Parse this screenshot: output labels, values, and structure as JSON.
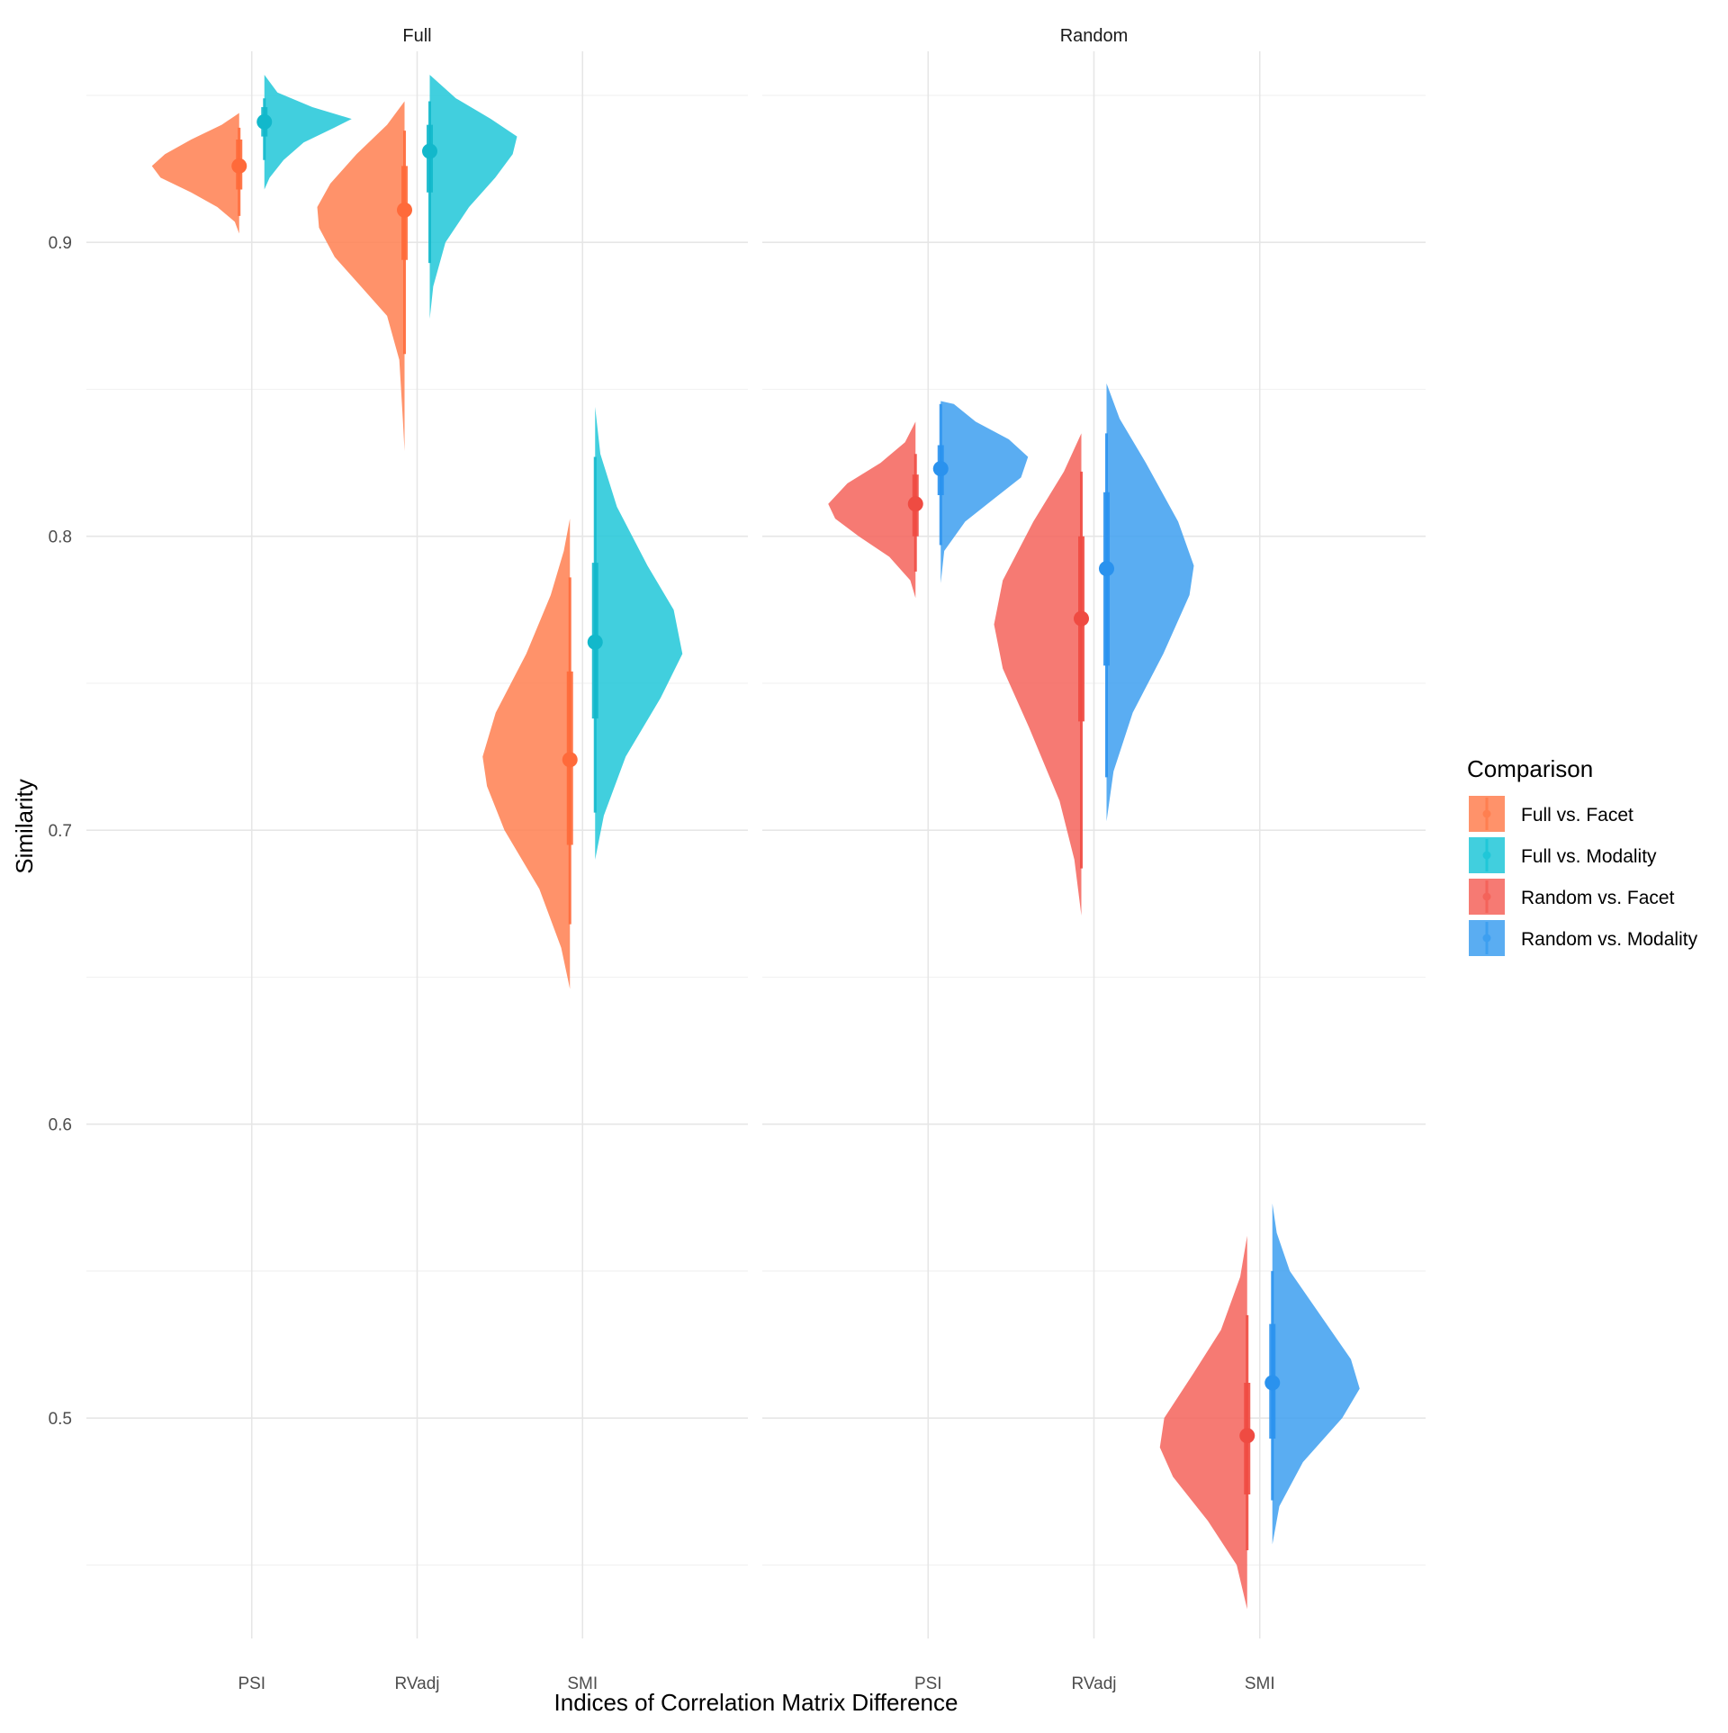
{
  "chart_data": {
    "type": "violin",
    "xlabel": "Indices of Correlation Matrix Difference",
    "ylabel": "Similarity",
    "ylim": [
      0.425,
      0.965
    ],
    "yticks": [
      0.5,
      0.6,
      0.7,
      0.8,
      0.9
    ],
    "ytick_labels": [
      "0.5",
      "0.6",
      "0.7",
      "0.8",
      "0.9"
    ],
    "categories": [
      "PSI",
      "RVadj",
      "SMI"
    ],
    "grid": true,
    "legend": {
      "title": "Comparison",
      "placement": "right",
      "entries": [
        {
          "label": "Full vs. Facet",
          "color": "#FF7F50"
        },
        {
          "label": "Full vs. Modality",
          "color": "#20C7D8"
        },
        {
          "label": "Random vs. Facet",
          "color": "#F4635A"
        },
        {
          "label": "Random vs. Modality",
          "color": "#3D9FF0"
        }
      ]
    },
    "panels": [
      {
        "title": "Full",
        "series": [
          {
            "name": "Full vs. Facet",
            "side": "left",
            "color": "#FF7F50",
            "point_color": "#FF6A3A",
            "groups": [
              {
                "category": "PSI",
                "median": 0.926,
                "inner_interval": [
                  0.918,
                  0.935
                ],
                "outer_interval": [
                  0.909,
                  0.939
                ],
                "density": [
                  [
                    0.903,
                    0
                  ],
                  [
                    0.907,
                    0.05
                  ],
                  [
                    0.912,
                    0.25
                  ],
                  [
                    0.917,
                    0.55
                  ],
                  [
                    0.922,
                    0.9
                  ],
                  [
                    0.926,
                    1.0
                  ],
                  [
                    0.93,
                    0.85
                  ],
                  [
                    0.935,
                    0.55
                  ],
                  [
                    0.94,
                    0.2
                  ],
                  [
                    0.944,
                    0
                  ]
                ]
              },
              {
                "category": "RVadj",
                "median": 0.911,
                "inner_interval": [
                  0.894,
                  0.926
                ],
                "outer_interval": [
                  0.862,
                  0.938
                ],
                "density": [
                  [
                    0.829,
                    0
                  ],
                  [
                    0.84,
                    0.02
                  ],
                  [
                    0.86,
                    0.06
                  ],
                  [
                    0.875,
                    0.2
                  ],
                  [
                    0.885,
                    0.5
                  ],
                  [
                    0.895,
                    0.8
                  ],
                  [
                    0.905,
                    0.98
                  ],
                  [
                    0.912,
                    1.0
                  ],
                  [
                    0.92,
                    0.85
                  ],
                  [
                    0.93,
                    0.55
                  ],
                  [
                    0.94,
                    0.2
                  ],
                  [
                    0.948,
                    0
                  ]
                ]
              },
              {
                "category": "SMI",
                "median": 0.724,
                "inner_interval": [
                  0.695,
                  0.754
                ],
                "outer_interval": [
                  0.668,
                  0.786
                ],
                "density": [
                  [
                    0.646,
                    0
                  ],
                  [
                    0.66,
                    0.1
                  ],
                  [
                    0.68,
                    0.35
                  ],
                  [
                    0.7,
                    0.75
                  ],
                  [
                    0.715,
                    0.95
                  ],
                  [
                    0.725,
                    1.0
                  ],
                  [
                    0.74,
                    0.85
                  ],
                  [
                    0.76,
                    0.5
                  ],
                  [
                    0.78,
                    0.22
                  ],
                  [
                    0.795,
                    0.07
                  ],
                  [
                    0.806,
                    0
                  ]
                ]
              }
            ]
          },
          {
            "name": "Full vs. Modality",
            "side": "right",
            "color": "#20C7D8",
            "point_color": "#12B8CB",
            "groups": [
              {
                "category": "PSI",
                "median": 0.941,
                "inner_interval": [
                  0.936,
                  0.946
                ],
                "outer_interval": [
                  0.928,
                  0.949
                ],
                "density": [
                  [
                    0.918,
                    0
                  ],
                  [
                    0.922,
                    0.06
                  ],
                  [
                    0.928,
                    0.22
                  ],
                  [
                    0.934,
                    0.45
                  ],
                  [
                    0.939,
                    0.8
                  ],
                  [
                    0.942,
                    1.0
                  ],
                  [
                    0.946,
                    0.55
                  ],
                  [
                    0.951,
                    0.15
                  ],
                  [
                    0.957,
                    0
                  ]
                ]
              },
              {
                "category": "RVadj",
                "median": 0.931,
                "inner_interval": [
                  0.917,
                  0.94
                ],
                "outer_interval": [
                  0.893,
                  0.948
                ],
                "density": [
                  [
                    0.874,
                    0
                  ],
                  [
                    0.885,
                    0.04
                  ],
                  [
                    0.9,
                    0.18
                  ],
                  [
                    0.912,
                    0.45
                  ],
                  [
                    0.922,
                    0.75
                  ],
                  [
                    0.93,
                    0.95
                  ],
                  [
                    0.936,
                    1.0
                  ],
                  [
                    0.942,
                    0.7
                  ],
                  [
                    0.949,
                    0.3
                  ],
                  [
                    0.957,
                    0
                  ]
                ]
              },
              {
                "category": "SMI",
                "median": 0.764,
                "inner_interval": [
                  0.738,
                  0.791
                ],
                "outer_interval": [
                  0.706,
                  0.827
                ],
                "density": [
                  [
                    0.69,
                    0
                  ],
                  [
                    0.705,
                    0.1
                  ],
                  [
                    0.725,
                    0.35
                  ],
                  [
                    0.745,
                    0.75
                  ],
                  [
                    0.76,
                    1.0
                  ],
                  [
                    0.775,
                    0.9
                  ],
                  [
                    0.79,
                    0.6
                  ],
                  [
                    0.81,
                    0.25
                  ],
                  [
                    0.828,
                    0.06
                  ],
                  [
                    0.844,
                    0
                  ]
                ]
              }
            ]
          }
        ]
      },
      {
        "title": "Random",
        "series": [
          {
            "name": "Random vs. Facet",
            "side": "left",
            "color": "#F4635A",
            "point_color": "#EF4B42",
            "groups": [
              {
                "category": "PSI",
                "median": 0.811,
                "inner_interval": [
                  0.8,
                  0.821
                ],
                "outer_interval": [
                  0.788,
                  0.828
                ],
                "density": [
                  [
                    0.779,
                    0
                  ],
                  [
                    0.785,
                    0.06
                  ],
                  [
                    0.793,
                    0.3
                  ],
                  [
                    0.8,
                    0.65
                  ],
                  [
                    0.806,
                    0.92
                  ],
                  [
                    0.811,
                    1.0
                  ],
                  [
                    0.818,
                    0.78
                  ],
                  [
                    0.825,
                    0.4
                  ],
                  [
                    0.832,
                    0.12
                  ],
                  [
                    0.839,
                    0
                  ]
                ]
              },
              {
                "category": "RVadj",
                "median": 0.772,
                "inner_interval": [
                  0.737,
                  0.8
                ],
                "outer_interval": [
                  0.687,
                  0.822
                ],
                "density": [
                  [
                    0.671,
                    0
                  ],
                  [
                    0.69,
                    0.08
                  ],
                  [
                    0.71,
                    0.25
                  ],
                  [
                    0.735,
                    0.6
                  ],
                  [
                    0.755,
                    0.9
                  ],
                  [
                    0.77,
                    1.0
                  ],
                  [
                    0.785,
                    0.9
                  ],
                  [
                    0.805,
                    0.55
                  ],
                  [
                    0.822,
                    0.2
                  ],
                  [
                    0.835,
                    0
                  ]
                ]
              },
              {
                "category": "SMI",
                "median": 0.494,
                "inner_interval": [
                  0.474,
                  0.512
                ],
                "outer_interval": [
                  0.455,
                  0.535
                ],
                "density": [
                  [
                    0.435,
                    0
                  ],
                  [
                    0.45,
                    0.12
                  ],
                  [
                    0.465,
                    0.45
                  ],
                  [
                    0.48,
                    0.85
                  ],
                  [
                    0.49,
                    1.0
                  ],
                  [
                    0.5,
                    0.95
                  ],
                  [
                    0.515,
                    0.62
                  ],
                  [
                    0.53,
                    0.3
                  ],
                  [
                    0.548,
                    0.08
                  ],
                  [
                    0.562,
                    0
                  ]
                ]
              }
            ]
          },
          {
            "name": "Random vs. Modality",
            "side": "right",
            "color": "#3D9FF0",
            "point_color": "#2A92EE",
            "groups": [
              {
                "category": "PSI",
                "median": 0.823,
                "inner_interval": [
                  0.814,
                  0.831
                ],
                "outer_interval": [
                  0.797,
                  0.845
                ],
                "density": [
                  [
                    0.784,
                    0
                  ],
                  [
                    0.795,
                    0.04
                  ],
                  [
                    0.805,
                    0.28
                  ],
                  [
                    0.813,
                    0.62
                  ],
                  [
                    0.82,
                    0.92
                  ],
                  [
                    0.827,
                    1.0
                  ],
                  [
                    0.833,
                    0.78
                  ],
                  [
                    0.839,
                    0.4
                  ],
                  [
                    0.845,
                    0.15
                  ],
                  [
                    0.846,
                    0
                  ]
                ]
              },
              {
                "category": "RVadj",
                "median": 0.789,
                "inner_interval": [
                  0.756,
                  0.815
                ],
                "outer_interval": [
                  0.718,
                  0.835
                ],
                "density": [
                  [
                    0.703,
                    0
                  ],
                  [
                    0.72,
                    0.08
                  ],
                  [
                    0.74,
                    0.3
                  ],
                  [
                    0.76,
                    0.65
                  ],
                  [
                    0.78,
                    0.95
                  ],
                  [
                    0.79,
                    1.0
                  ],
                  [
                    0.805,
                    0.82
                  ],
                  [
                    0.825,
                    0.45
                  ],
                  [
                    0.84,
                    0.15
                  ],
                  [
                    0.852,
                    0
                  ]
                ]
              },
              {
                "category": "SMI",
                "median": 0.512,
                "inner_interval": [
                  0.493,
                  0.532
                ],
                "outer_interval": [
                  0.472,
                  0.55
                ],
                "density": [
                  [
                    0.457,
                    0
                  ],
                  [
                    0.47,
                    0.08
                  ],
                  [
                    0.485,
                    0.35
                  ],
                  [
                    0.5,
                    0.8
                  ],
                  [
                    0.51,
                    1.0
                  ],
                  [
                    0.52,
                    0.9
                  ],
                  [
                    0.535,
                    0.55
                  ],
                  [
                    0.55,
                    0.2
                  ],
                  [
                    0.563,
                    0.05
                  ],
                  [
                    0.573,
                    0
                  ]
                ]
              }
            ]
          }
        ]
      }
    ]
  }
}
